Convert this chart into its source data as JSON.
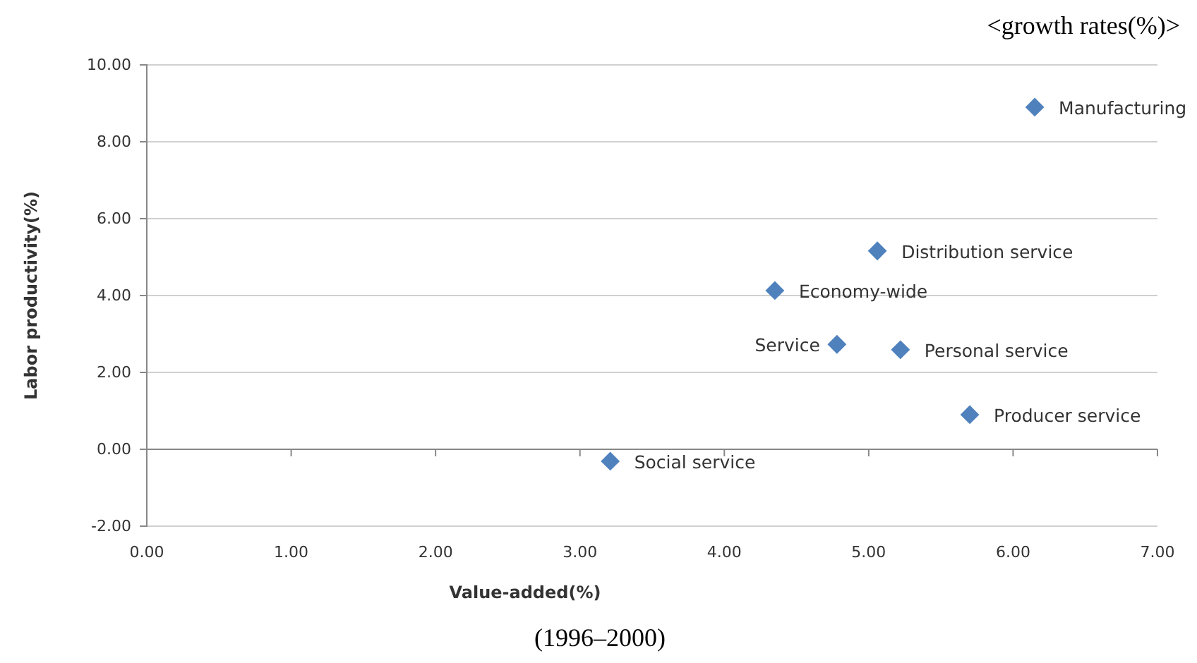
{
  "chart_data": {
    "type": "scatter",
    "title": "<growth rates(%)>",
    "subtitle": "(1996–2000)",
    "xlabel": "Value-added(%)",
    "ylabel": "Labor productivity(%)",
    "x": [
      6.15,
      5.06,
      4.35,
      4.78,
      5.22,
      5.7,
      3.21
    ],
    "series": [
      {
        "color": "#4f81bd",
        "values": [
          8.9,
          5.16,
          4.13,
          2.73,
          2.59,
          0.9,
          -0.31
        ]
      }
    ],
    "annotations": [
      {
        "text": "Manufacturing",
        "x": 6.15,
        "y": 8.9
      },
      {
        "text": "Distribution service",
        "x": 5.06,
        "y": 5.16
      },
      {
        "text": "Economy-wide",
        "x": 4.35,
        "y": 4.13
      },
      {
        "text": "Service",
        "x": 4.78,
        "y": 2.73
      },
      {
        "text": "Personal service",
        "x": 5.22,
        "y": 2.59
      },
      {
        "text": "Producer service",
        "x": 5.7,
        "y": 0.9
      },
      {
        "text": "Social service",
        "x": 3.21,
        "y": -0.31
      }
    ],
    "xlim": [
      0,
      7
    ],
    "xticks": [
      {
        "value": 0,
        "label": "0.00"
      },
      {
        "value": 1,
        "label": "1.00"
      },
      {
        "value": 2,
        "label": "2.00"
      },
      {
        "value": 3,
        "label": "3.00"
      },
      {
        "value": 4,
        "label": "4.00"
      },
      {
        "value": 5,
        "label": "5.00"
      },
      {
        "value": 6,
        "label": "6.00"
      },
      {
        "value": 7,
        "label": "7.00"
      }
    ],
    "ylim": [
      -2,
      10
    ],
    "yticks": [
      {
        "value": -2,
        "label": "-2.00"
      },
      {
        "value": 0,
        "label": "0.00"
      },
      {
        "value": 2,
        "label": "2.00"
      },
      {
        "value": 4,
        "label": "4.00"
      },
      {
        "value": 6,
        "label": "6.00"
      },
      {
        "value": 8,
        "label": "8.00"
      },
      {
        "value": 10,
        "label": "10.00"
      }
    ],
    "grid": "y",
    "marker": "diamond"
  }
}
